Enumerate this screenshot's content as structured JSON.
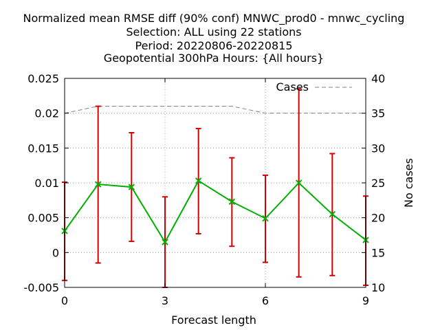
{
  "chart_data": {
    "type": "line",
    "title_lines": [
      "Normalized mean RMSE diff (90% conf) MNWC_prod0 - mnwc_cycling",
      "Selection: ALL using    22 stations",
      "Period: 20220806-20220815",
      "Geopotential 300hPa   Hours: {All hours}"
    ],
    "xlabel": "Forecast length",
    "ylabel": "",
    "y2label": "No cases",
    "x": [
      0,
      1,
      2,
      3,
      4,
      5,
      6,
      7,
      8,
      9
    ],
    "xlim": [
      0,
      9
    ],
    "ylim": [
      -0.005,
      0.025
    ],
    "y2lim": [
      10,
      40
    ],
    "xticks": [
      "0",
      "3",
      "6",
      "9"
    ],
    "yticks": [
      "-0.005",
      "0",
      "0.005",
      "0.01",
      "0.015",
      "0.02",
      "0.025"
    ],
    "y2ticks": [
      "10",
      "15",
      "20",
      "25",
      "30",
      "35",
      "40"
    ],
    "grid": true,
    "legend_position": "top-right",
    "series": [
      {
        "name": "",
        "axis": "left",
        "color": "#00b000",
        "values": [
          0.0031,
          0.0098,
          0.0094,
          0.0015,
          0.0103,
          0.0073,
          0.0049,
          0.01,
          0.0055,
          0.0018
        ],
        "error_low": [
          -0.004,
          -0.0015,
          0.0016,
          -0.005,
          0.0027,
          0.0009,
          -0.0014,
          -0.0035,
          -0.0033,
          -0.0047
        ],
        "error_high": [
          0.0101,
          0.021,
          0.0172,
          0.008,
          0.0178,
          0.0136,
          0.0111,
          0.0235,
          0.0142,
          0.0081
        ],
        "error_color": "#d00000"
      },
      {
        "name": "Cases",
        "axis": "right",
        "color": "#808080",
        "values": [
          35,
          36,
          36,
          36,
          36,
          36,
          35,
          35,
          35,
          35
        ]
      }
    ]
  }
}
